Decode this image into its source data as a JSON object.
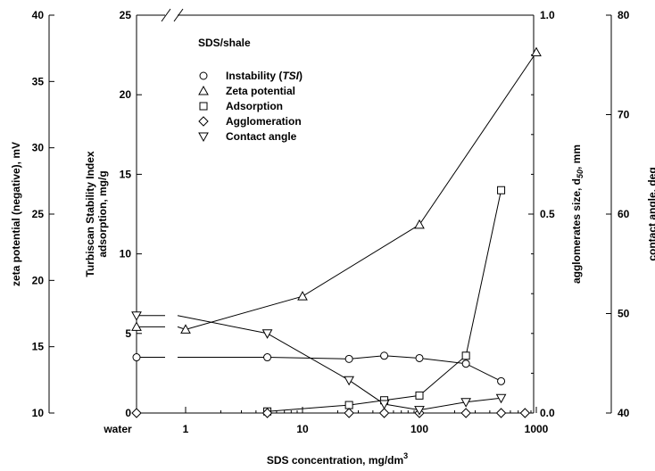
{
  "chart_data": {
    "type": "line",
    "title": "SDS/shale",
    "xlabel": "SDS concentration, mg/dm",
    "xlabel_sup": "3",
    "x_scale": "log",
    "x_ticks": [
      {
        "value": "water",
        "label": "water"
      },
      {
        "value": 1,
        "label": "1"
      },
      {
        "value": 10,
        "label": "10"
      },
      {
        "value": 100,
        "label": "100"
      },
      {
        "value": 1000,
        "label": "1000"
      }
    ],
    "x_break": true,
    "axes": {
      "zeta": {
        "label": "zeta potential (negative), mV",
        "range": [
          10,
          40
        ],
        "ticks": [
          "10",
          "15",
          "20",
          "25",
          "30",
          "35",
          "40"
        ]
      },
      "tsi": {
        "label_lines": [
          "Turbiscan Stability Index",
          "adsorption, mg/g"
        ],
        "range": [
          0,
          25
        ],
        "ticks": [
          "0",
          "5",
          "10",
          "15",
          "20",
          "25"
        ]
      },
      "agglomerate": {
        "label": "agglomerates size, d",
        "label_sub": "50",
        "label_tail": ", mm",
        "range": [
          0.0,
          1.0
        ],
        "ticks": [
          "0.0",
          "0.5",
          "1.0"
        ]
      },
      "contact_angle": {
        "label": "contact angle, deg",
        "range": [
          40,
          80
        ],
        "ticks": [
          "40",
          "50",
          "60",
          "70",
          "80"
        ]
      }
    },
    "series": [
      {
        "name": "Instability (TSI)",
        "name_plain": "Instability (",
        "name_italic": "TSI",
        "name_tail": ")",
        "marker": "circle",
        "axis": "tsi",
        "water": 3.5,
        "x": [
          5,
          25,
          50,
          100,
          250,
          500
        ],
        "y": [
          3.5,
          3.4,
          3.6,
          3.45,
          3.1,
          2.0
        ]
      },
      {
        "name": "Zeta potential",
        "marker": "triangle-up",
        "axis": "zeta",
        "water": 16.5,
        "x": [
          1,
          10,
          100,
          1000
        ],
        "y": [
          16.3,
          18.8,
          24.2,
          37.2
        ]
      },
      {
        "name": "Adsorption",
        "marker": "square",
        "axis": "tsi",
        "water": null,
        "x": [
          5,
          25,
          50,
          100,
          250,
          500
        ],
        "y": [
          0.1,
          0.5,
          0.8,
          1.1,
          3.6,
          14.0
        ]
      },
      {
        "name": "Agglomeration",
        "marker": "diamond",
        "axis": "agglomerate",
        "water": 0.0,
        "x": [
          5,
          25,
          50,
          100,
          250,
          500,
          800
        ],
        "y": [
          0.0,
          0.0,
          0.0,
          0.0,
          0.0,
          0.0,
          0.0
        ]
      },
      {
        "name": "Contact angle",
        "marker": "triangle-down",
        "axis": "contact_angle",
        "water": 49.8,
        "x": [
          5,
          25,
          50,
          100,
          250,
          500
        ],
        "y": [
          48.0,
          43.3,
          40.9,
          40.3,
          41.1,
          41.5
        ]
      }
    ],
    "legend_position": "top-left inside plot",
    "grid": false
  }
}
